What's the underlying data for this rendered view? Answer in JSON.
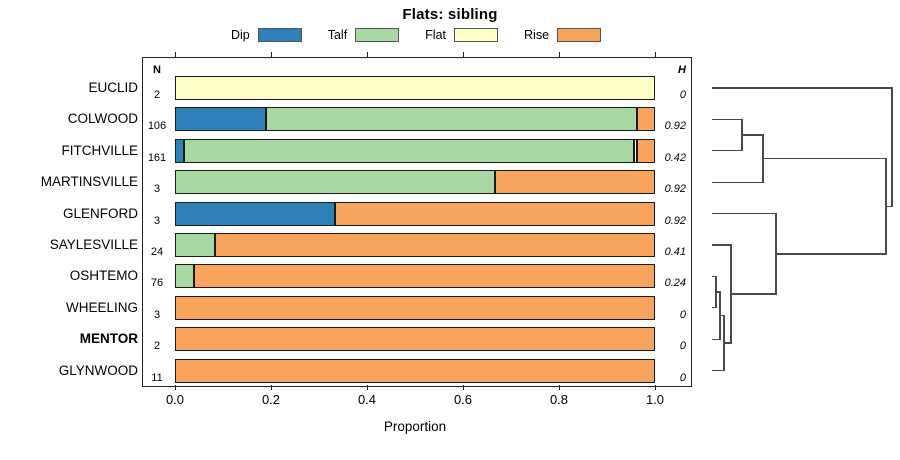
{
  "title": "Flats: sibling",
  "legend": [
    {
      "label": "Dip",
      "color": "#2e80b9"
    },
    {
      "label": "Talf",
      "color": "#a9d9a2"
    },
    {
      "label": "Flat",
      "color": "#ffffc9"
    },
    {
      "label": "Rise",
      "color": "#f9a45c"
    }
  ],
  "columns": {
    "n_header": "N",
    "h_header": "H"
  },
  "chart_data": {
    "type": "bar",
    "orientation": "horizontal-stacked",
    "title": "Flats: sibling",
    "xlabel": "Proportion",
    "xlim": [
      0,
      1
    ],
    "xticks": [
      0.0,
      0.2,
      0.4,
      0.6,
      0.8,
      1.0
    ],
    "categories": [
      "Dip",
      "Talf",
      "Flat",
      "Rise"
    ],
    "colors": {
      "Dip": "#2e80b9",
      "Talf": "#a9d9a2",
      "Flat": "#ffffc9",
      "Rise": "#f9a45c"
    },
    "rows": [
      {
        "label": "EUCLID",
        "n": 2,
        "h": "0",
        "bold": false,
        "segments": {
          "Flat": 1.0
        }
      },
      {
        "label": "COLWOOD",
        "n": 106,
        "h": "0.92",
        "bold": false,
        "segments": {
          "Dip": 0.189,
          "Talf": 0.773,
          "Rise": 0.038
        }
      },
      {
        "label": "FITCHVILLE",
        "n": 161,
        "h": "0.42",
        "bold": false,
        "segments": {
          "Dip": 0.019,
          "Talf": 0.937,
          "Flat": 0.006,
          "Rise": 0.038
        }
      },
      {
        "label": "MARTINSVILLE",
        "n": 3,
        "h": "0.92",
        "bold": false,
        "segments": {
          "Talf": 0.667,
          "Rise": 0.333
        }
      },
      {
        "label": "GLENFORD",
        "n": 3,
        "h": "0.92",
        "bold": false,
        "segments": {
          "Dip": 0.333,
          "Rise": 0.667
        }
      },
      {
        "label": "SAYLESVILLE",
        "n": 24,
        "h": "0.41",
        "bold": false,
        "segments": {
          "Talf": 0.083,
          "Rise": 0.917
        }
      },
      {
        "label": "OSHTEMO",
        "n": 76,
        "h": "0.24",
        "bold": false,
        "segments": {
          "Talf": 0.039,
          "Rise": 0.961
        }
      },
      {
        "label": "WHEELING",
        "n": 3,
        "h": "0",
        "bold": false,
        "segments": {
          "Rise": 1.0
        }
      },
      {
        "label": "MENTOR",
        "n": 2,
        "h": "0",
        "bold": true,
        "segments": {
          "Rise": 1.0
        }
      },
      {
        "label": "GLYNWOOD",
        "n": 11,
        "h": "0",
        "bold": false,
        "segments": {
          "Rise": 1.0
        }
      }
    ],
    "dendrogram": {
      "height": 1.0,
      "a": "EUCLID",
      "b": {
        "height": 0.967,
        "a": {
          "height": 0.283,
          "a": {
            "height": 0.167,
            "a": "COLWOOD",
            "b": "FITCHVILLE"
          },
          "b": "MARTINSVILLE"
        },
        "b": {
          "height": 0.356,
          "a": "GLENFORD",
          "b": {
            "height": 0.106,
            "a": "SAYLESVILLE",
            "b": {
              "height": 0.067,
              "a": {
                "height": 0.044,
                "a": {
                  "height": 0.022,
                  "a": "OSHTEMO",
                  "b": "WHEELING"
                },
                "b": "MENTOR"
              },
              "b": "GLYNWOOD"
            }
          }
        }
      }
    }
  }
}
